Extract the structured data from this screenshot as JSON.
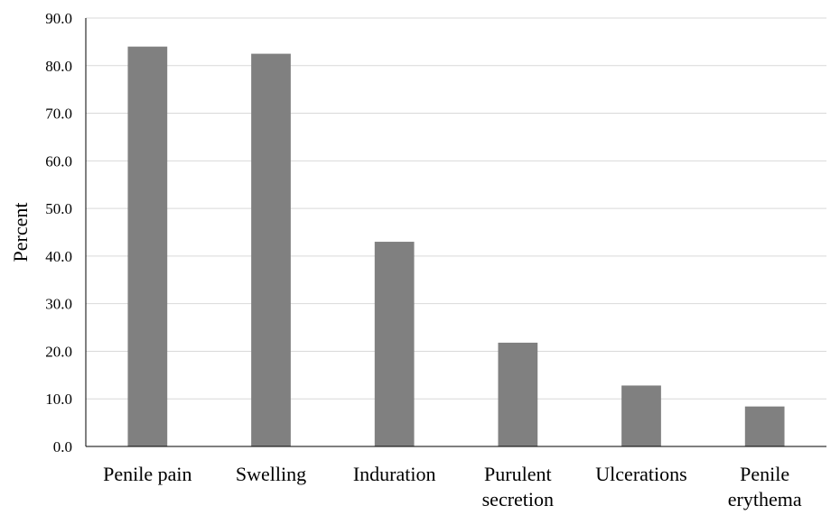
{
  "chart_data": {
    "type": "bar",
    "categories": [
      [
        "Penile pain"
      ],
      [
        "Swelling"
      ],
      [
        "Induration"
      ],
      [
        "Purulent",
        "secretion"
      ],
      [
        "Ulcerations"
      ],
      [
        "Penile",
        "erythema"
      ]
    ],
    "values": [
      84.0,
      82.5,
      43.0,
      21.8,
      12.8,
      8.4
    ],
    "title": "",
    "xlabel": "",
    "ylabel": "Percent",
    "ylim": [
      0,
      90
    ],
    "yticks": [
      "0.0",
      "10.0",
      "20.0",
      "30.0",
      "40.0",
      "50.0",
      "60.0",
      "70.0",
      "80.0",
      "90.0"
    ],
    "grid": true,
    "legend": "none",
    "bar_color": "#808080",
    "grid_color": "#d9d9d9"
  }
}
